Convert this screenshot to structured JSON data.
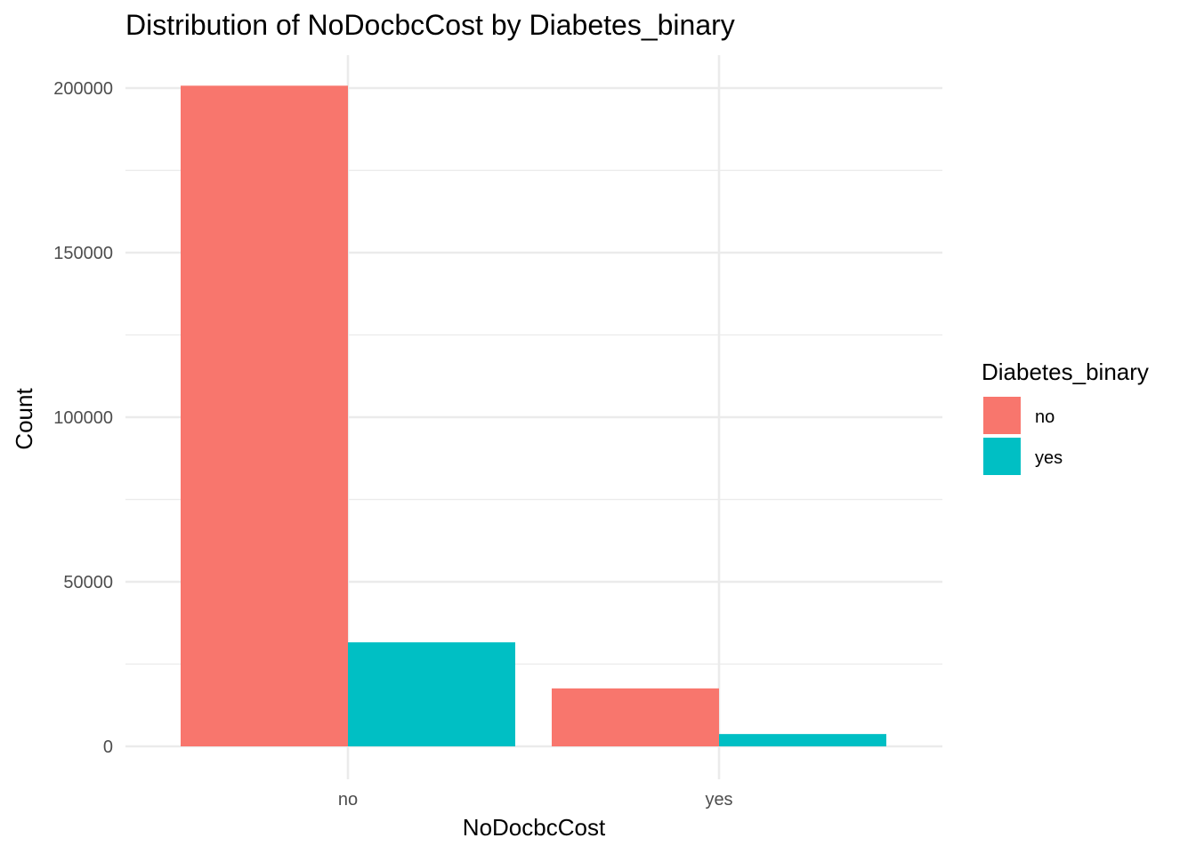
{
  "chart_data": {
    "type": "bar",
    "title": "Distribution of NoDocbcCost by Diabetes_binary",
    "xlabel": "NoDocbcCost",
    "ylabel": "Count",
    "categories": [
      "no",
      "yes"
    ],
    "series": [
      {
        "name": "no",
        "color": "#F8766D",
        "values": [
          200722,
          17612
        ]
      },
      {
        "name": "yes",
        "color": "#00BFC4",
        "values": [
          31604,
          3742
        ]
      }
    ],
    "ylim": [
      -10000,
      210000
    ],
    "yticks": [
      0,
      50000,
      100000,
      150000,
      200000
    ],
    "ytick_labels": [
      "0",
      "50000",
      "100000",
      "150000",
      "200000"
    ],
    "grid": true,
    "legend": {
      "title": "Diabetes_binary",
      "position": "right"
    }
  }
}
